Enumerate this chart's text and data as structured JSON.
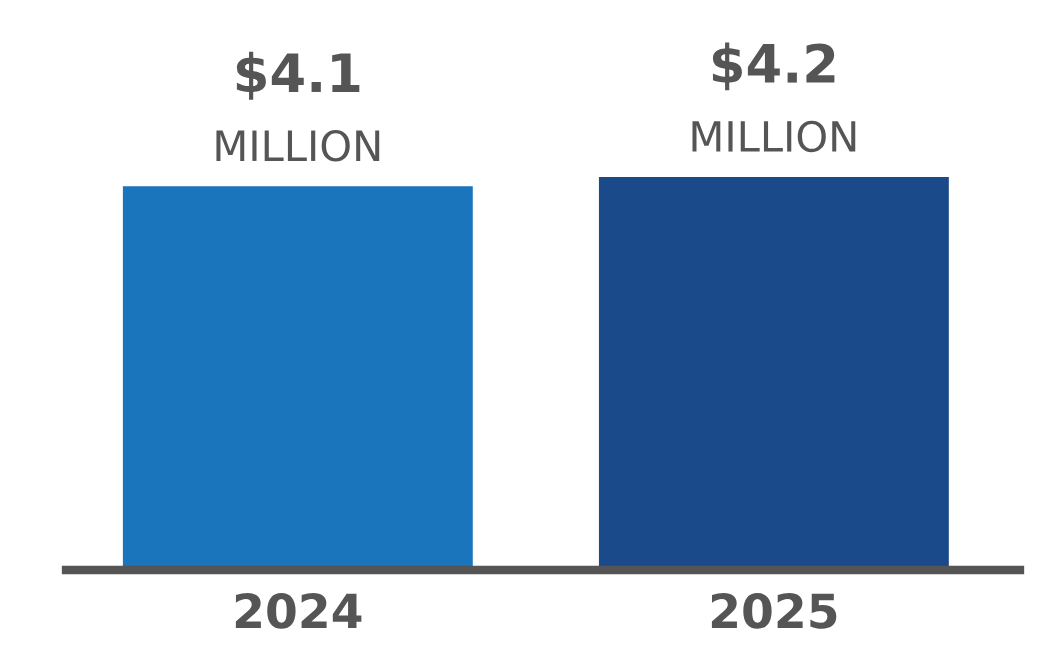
{
  "chart_data": {
    "type": "bar",
    "categories": [
      "2024",
      "2025"
    ],
    "values": [
      4.1,
      4.2
    ],
    "colors": [
      "#1a75bc",
      "#1b4a8a"
    ],
    "value_labels": [
      "$4.1\nMILLION",
      "$4.2\nMILLION"
    ],
    "grid": false,
    "legend": false
  }
}
